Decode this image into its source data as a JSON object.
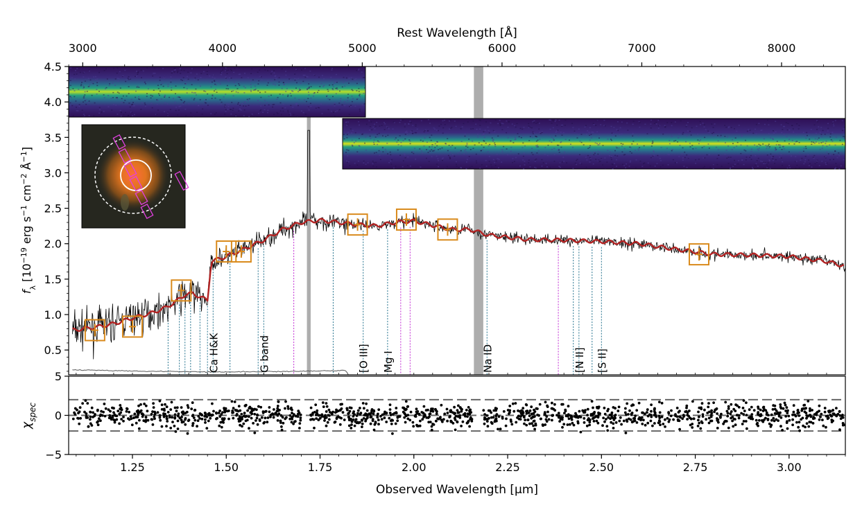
{
  "chart_data": [
    {
      "type": "line",
      "panel": "spectrum",
      "top_axis_label": "Rest Wavelength [Å]",
      "top_ticks": [
        3000,
        4000,
        5000,
        6000,
        7000,
        8000
      ],
      "ylabel": "f_λ [10^-19 erg s^-1 cm^-2 Å^-1]",
      "ylabel_parts": {
        "f": "f",
        "sub": "λ",
        "open": " [10",
        "exp1": "−19",
        "mid1": " erg s",
        "exp2": "−1",
        "mid2": " cm",
        "exp3": "−2",
        "mid3": " Å",
        "exp4": "−1",
        "close": "]"
      },
      "ylim": [
        0.15,
        4.5
      ],
      "y_ticks": [
        "0.5",
        "1.0",
        "1.5",
        "2.0",
        "2.5",
        "3.0",
        "3.5",
        "4.0",
        "4.5"
      ],
      "xlim_observed_um": [
        1.08,
        3.15
      ],
      "rest_to_observed_factor": 0.3725,
      "series": [
        {
          "color": "#b22222",
          "style": "model",
          "x": [
            1.09,
            1.12,
            1.15,
            1.2,
            1.25,
            1.3,
            1.34,
            1.37,
            1.39,
            1.41,
            1.43,
            1.45,
            1.46,
            1.5,
            1.55,
            1.6,
            1.65,
            1.7,
            1.75,
            1.8,
            1.85,
            1.9,
            1.95,
            2.0,
            2.05,
            2.1,
            2.15,
            2.2,
            2.3,
            2.4,
            2.5,
            2.6,
            2.7,
            2.8,
            2.9,
            3.0,
            3.1,
            3.15
          ],
          "y": [
            0.78,
            0.8,
            0.82,
            0.87,
            0.95,
            1.02,
            1.1,
            1.2,
            1.28,
            1.3,
            1.25,
            1.2,
            1.75,
            1.82,
            1.93,
            2.05,
            2.2,
            2.3,
            2.33,
            2.3,
            2.27,
            2.25,
            2.3,
            2.32,
            2.26,
            2.2,
            2.2,
            2.12,
            2.06,
            2.05,
            2.03,
            2.0,
            1.92,
            1.85,
            1.84,
            1.82,
            1.75,
            1.68
          ]
        },
        {
          "color": "#555555",
          "style": "uncertainty",
          "x": [
            1.09,
            1.3,
            1.5,
            1.7,
            1.82,
            1.83,
            2.0,
            2.5,
            3.0,
            3.15
          ],
          "y": [
            0.22,
            0.2,
            0.19,
            0.2,
            0.21,
            0.09,
            0.11,
            0.1,
            0.1,
            0.1
          ]
        }
      ],
      "photometry": [
        {
          "x": 1.15,
          "y": 0.78
        },
        {
          "x": 1.25,
          "y": 0.83
        },
        {
          "x": 1.38,
          "y": 1.34
        },
        {
          "x": 1.5,
          "y": 1.89
        },
        {
          "x": 1.54,
          "y": 1.89
        },
        {
          "x": 1.85,
          "y": 2.27
        },
        {
          "x": 1.98,
          "y": 2.34
        },
        {
          "x": 2.09,
          "y": 2.2
        },
        {
          "x": 2.76,
          "y": 1.85
        }
      ],
      "line_markers": [
        {
          "label": "Ca H&K",
          "x": 1.465
        },
        {
          "label": "G band",
          "x": 1.6
        },
        {
          "label": "[O III]",
          "x": 1.865
        },
        {
          "label": "Mg I",
          "x": 1.93
        },
        {
          "label": "Na ID",
          "x": 2.195
        },
        {
          "label": "[N II]",
          "x": 2.44
        },
        {
          "label": "[S II]",
          "x": 2.5
        }
      ],
      "masked_regions": [
        {
          "x": [
            1.715,
            1.725
          ]
        },
        {
          "x": [
            2.16,
            2.185
          ]
        }
      ]
    },
    {
      "type": "scatter",
      "panel": "residuals",
      "ylabel": "χ_spec",
      "ylabel_parts": {
        "chi": "χ",
        "sub": "spec"
      },
      "xlabel": "Observed Wavelength [μm]",
      "xlim": [
        1.08,
        3.15
      ],
      "ylim": [
        -5,
        5
      ],
      "x_ticks": [
        "1.25",
        "1.50",
        "1.75",
        "2.00",
        "2.25",
        "2.50",
        "2.75",
        "3.00"
      ],
      "y_ticks": [
        "5",
        "0",
        "−5"
      ],
      "reference_lines": [
        -2,
        0,
        2
      ]
    }
  ],
  "colors": {
    "model": "#b22222",
    "data": "#000000",
    "photometry": "#d98a1c",
    "blue_lines": "#1f6f8b",
    "magenta_lines": "#c026d3",
    "mask": "#999999",
    "spectrum_2d_bg": "#2e0f55",
    "aperture": "#e040e0"
  }
}
